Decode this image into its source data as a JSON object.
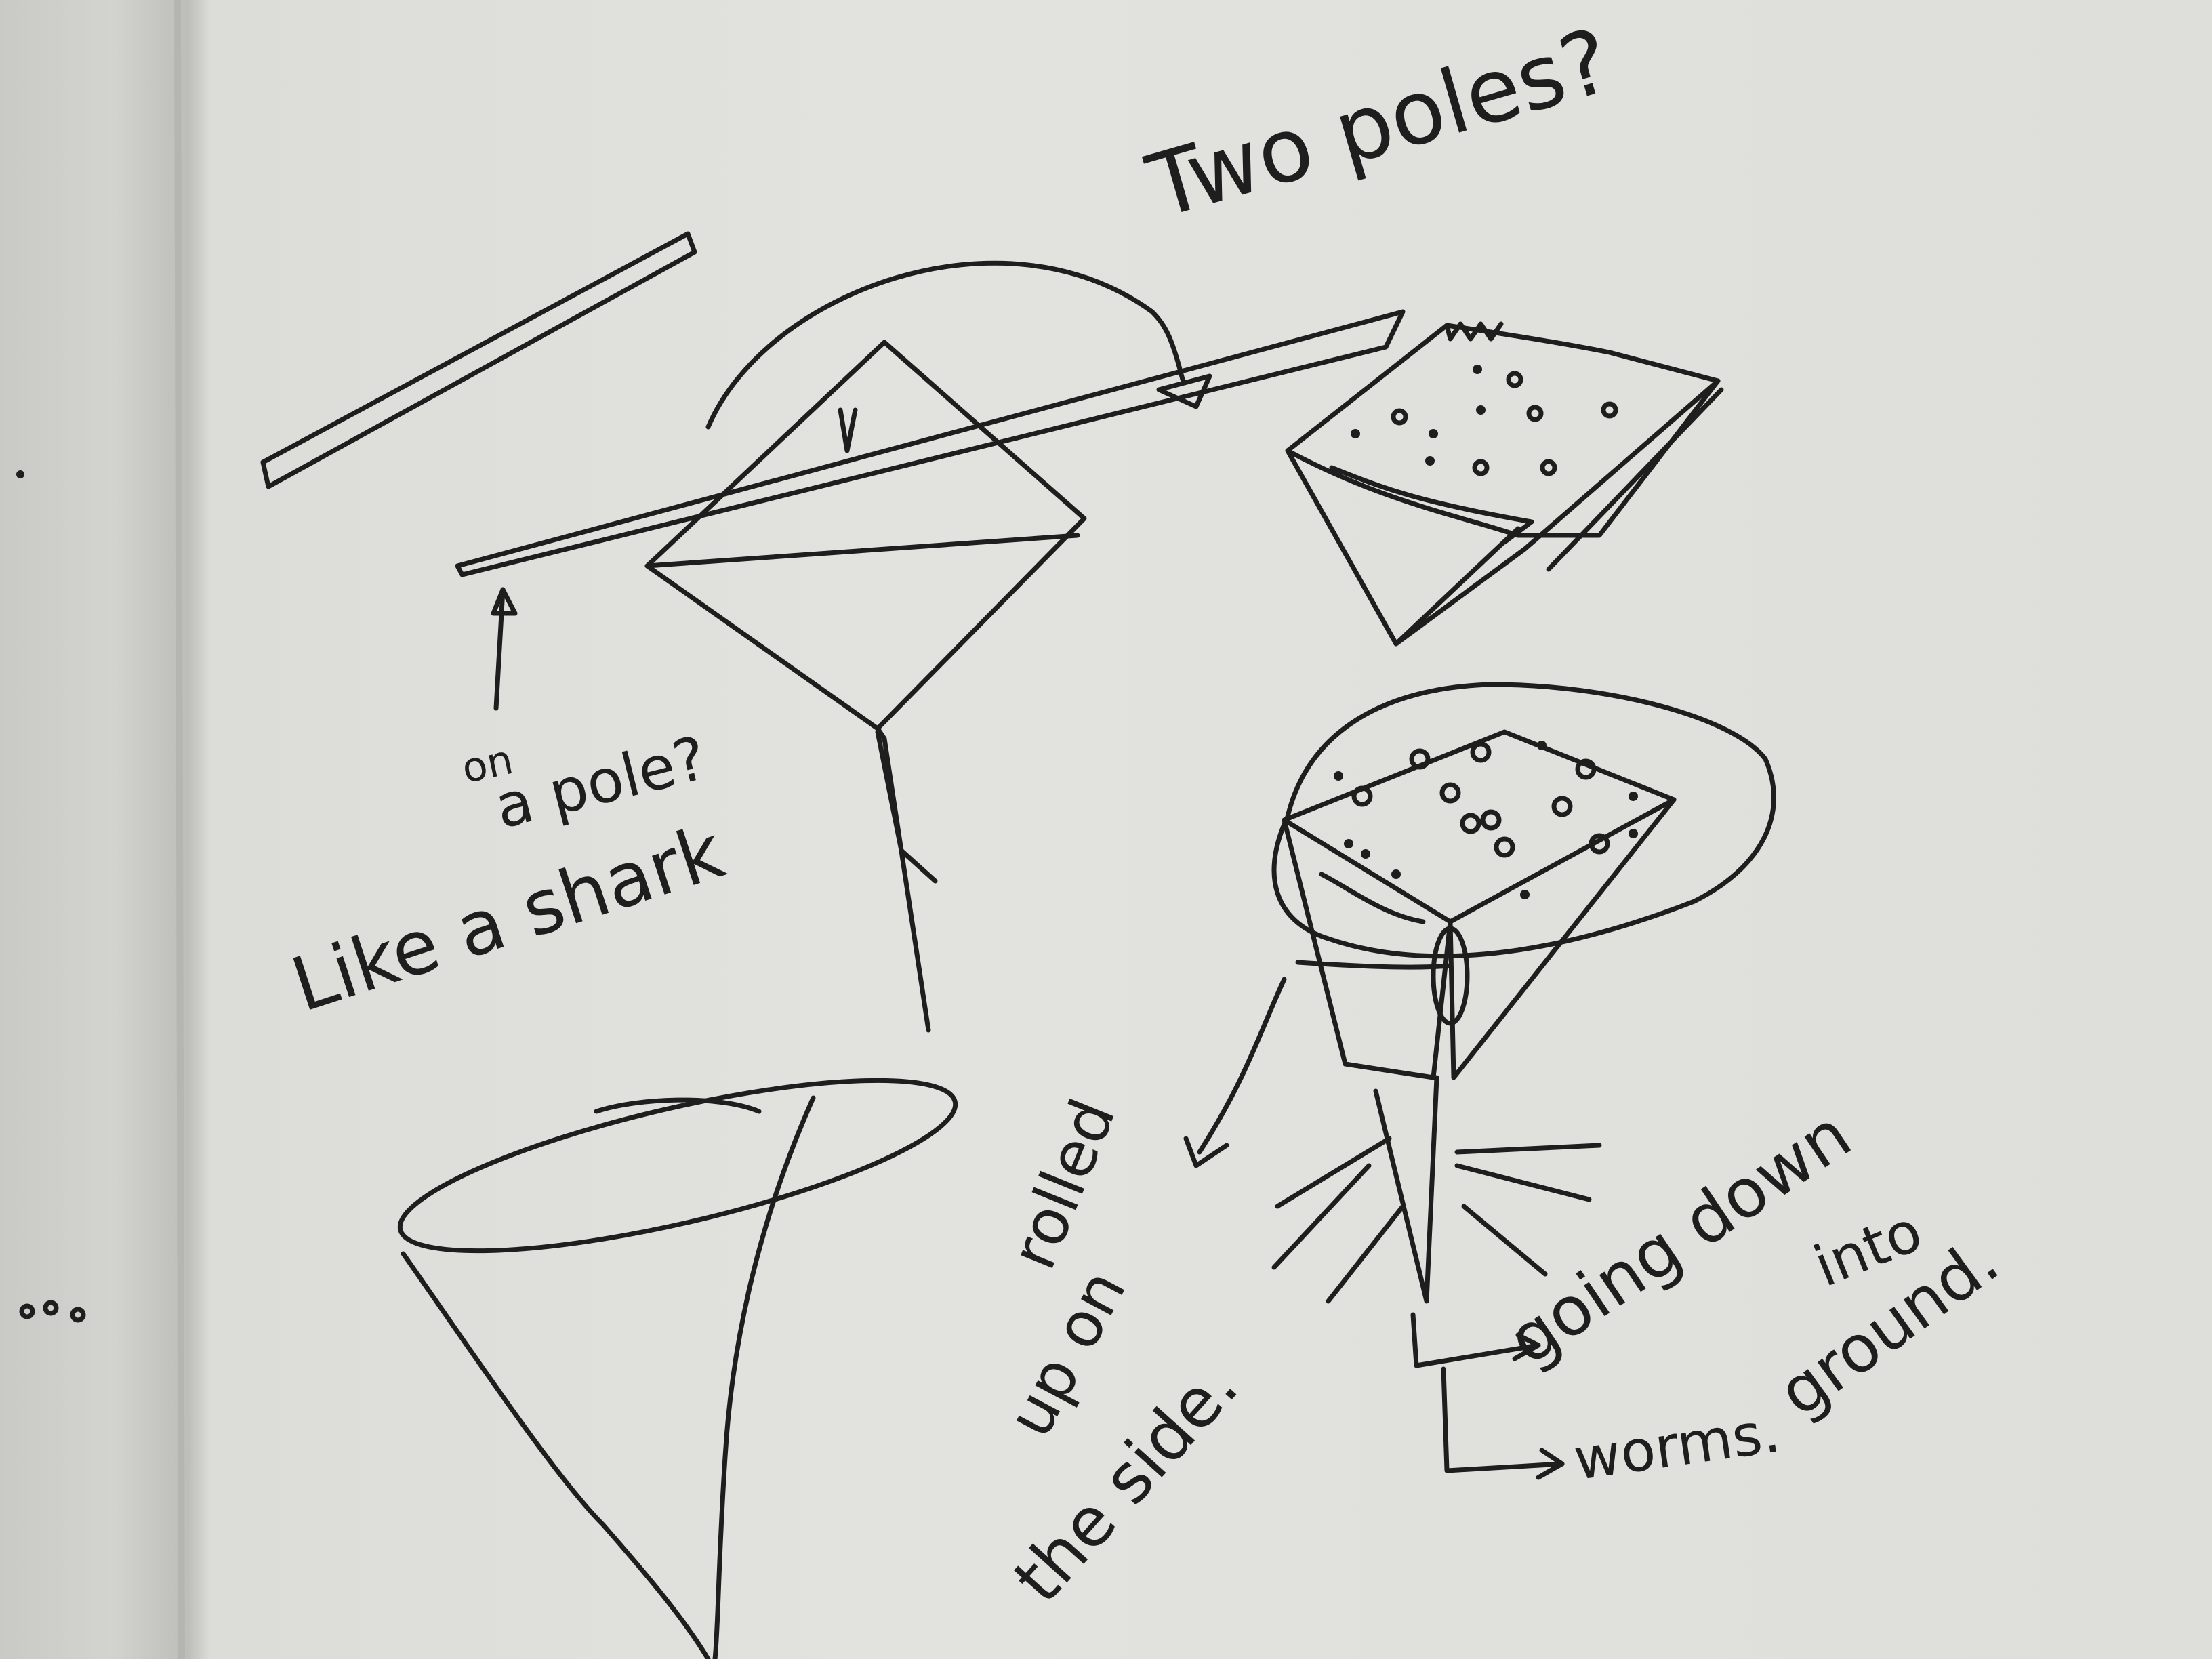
{
  "annotations": {
    "two_poles": "Two poles?",
    "on": "on",
    "a_pole": "a pole?",
    "like_a_shark": "Like a shark",
    "rolled": "rolled",
    "up_on": "up on",
    "the_side": "the side.",
    "going_down": "going down",
    "into": "into",
    "ground": "ground.",
    "worms": "worms."
  },
  "colors": {
    "ink": "#1e1e1e",
    "paper": "#e2e2de",
    "gutter": "#c9c9c5"
  }
}
